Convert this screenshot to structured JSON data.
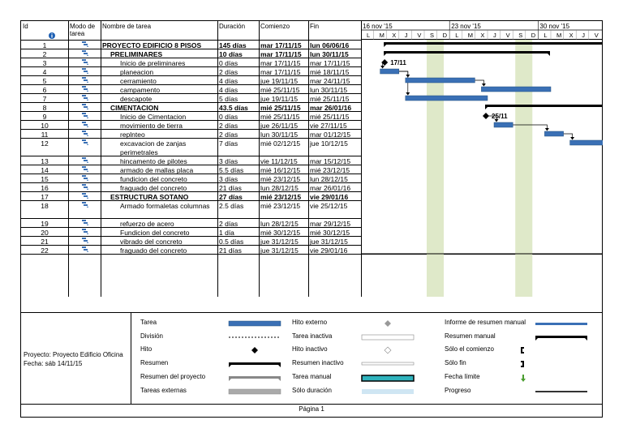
{
  "headers": {
    "id": "Id",
    "mode": "Modo de tarea",
    "name": "Nombre de tarea",
    "duration": "Duración",
    "start": "Comienzo",
    "finish": "Fin"
  },
  "timeline": {
    "weeks": [
      "16 nov '15",
      "23 nov '15",
      "30 nov '15"
    ],
    "days": [
      "L",
      "M",
      "X",
      "J",
      "V",
      "S",
      "D",
      "L",
      "M",
      "X",
      "J",
      "V",
      "S",
      "D",
      "L",
      "M",
      "X",
      "J",
      "V"
    ],
    "milestone_labels": [
      "17/11",
      "25/11"
    ]
  },
  "tasks": [
    {
      "id": "1",
      "name": "PROYECTO EDIFICIO 8 PISOS",
      "duration": "145 días",
      "start": "mar 17/11/15",
      "finish": "lun 06/06/16",
      "bold": true,
      "indent": 0
    },
    {
      "id": "2",
      "name": "PRELIMINARES",
      "duration": "10 días",
      "start": "mar 17/11/15",
      "finish": "lun 30/11/15",
      "bold": true,
      "indent": 1
    },
    {
      "id": "3",
      "name": "Inicio de preliminares",
      "duration": "0 días",
      "start": "mar 17/11/15",
      "finish": "mar 17/11/15",
      "bold": false,
      "indent": 2
    },
    {
      "id": "4",
      "name": "planeacion",
      "duration": "2 días",
      "start": "mar 17/11/15",
      "finish": "mié 18/11/15",
      "bold": false,
      "indent": 2
    },
    {
      "id": "5",
      "name": "cerramiento",
      "duration": "4 días",
      "start": "jue 19/11/15",
      "finish": "mar 24/11/15",
      "bold": false,
      "indent": 2
    },
    {
      "id": "6",
      "name": "campamento",
      "duration": "4 días",
      "start": "mié 25/11/15",
      "finish": "lun 30/11/15",
      "bold": false,
      "indent": 2
    },
    {
      "id": "7",
      "name": "descapote",
      "duration": "5 días",
      "start": "jue 19/11/15",
      "finish": "mié 25/11/15",
      "bold": false,
      "indent": 2
    },
    {
      "id": "8",
      "name": "CIMENTACION",
      "duration": "43.5 días",
      "start": "mié 25/11/15",
      "finish": "mar 26/01/16",
      "bold": true,
      "indent": 1
    },
    {
      "id": "9",
      "name": "Inicio de Cimentacion",
      "duration": "0 días",
      "start": "mié 25/11/15",
      "finish": "mié 25/11/15",
      "bold": false,
      "indent": 2
    },
    {
      "id": "10",
      "name": "movimiento de tierra",
      "duration": "2 días",
      "start": "jue 26/11/15",
      "finish": "vie 27/11/15",
      "bold": false,
      "indent": 2
    },
    {
      "id": "11",
      "name": "replnteo",
      "duration": "2 días",
      "start": "lun 30/11/15",
      "finish": "mar 01/12/15",
      "bold": false,
      "indent": 2
    },
    {
      "id": "12",
      "name": "excavacion de zanjas perimetrales",
      "duration": "7 días",
      "start": "mié 02/12/15",
      "finish": "jue 10/12/15",
      "bold": false,
      "indent": 2
    },
    {
      "id": "13",
      "name": "hincamento de pilotes",
      "duration": "3 días",
      "start": "vie 11/12/15",
      "finish": "mar 15/12/15",
      "bold": false,
      "indent": 2
    },
    {
      "id": "14",
      "name": "armado de mallas placa",
      "duration": "5.5 días",
      "start": "mié 16/12/15",
      "finish": "mié 23/12/15",
      "bold": false,
      "indent": 2
    },
    {
      "id": "15",
      "name": "fundicion del concreto",
      "duration": "3 días",
      "start": "mié 23/12/15",
      "finish": "lun 28/12/15",
      "bold": false,
      "indent": 2
    },
    {
      "id": "16",
      "name": "fraguado del concreto",
      "duration": "21 días",
      "start": "lun 28/12/15",
      "finish": "mar 26/01/16",
      "bold": false,
      "indent": 2
    },
    {
      "id": "17",
      "name": "ESTRUCTURA SOTANO",
      "duration": "27 días",
      "start": "mié 23/12/15",
      "finish": "vie 29/01/16",
      "bold": true,
      "indent": 1
    },
    {
      "id": "18",
      "name": "Armado formaletas columnas",
      "duration": "2.5 días",
      "start": "mié 23/12/15",
      "finish": "vie 25/12/15",
      "bold": false,
      "indent": 2
    },
    {
      "id": "19",
      "name": "refuerzo de acero",
      "duration": "2 días",
      "start": "lun 28/12/15",
      "finish": "mar 29/12/15",
      "bold": false,
      "indent": 2
    },
    {
      "id": "20",
      "name": "Fundicion del concreto",
      "duration": "1 día",
      "start": "mié 30/12/15",
      "finish": "mié 30/12/15",
      "bold": false,
      "indent": 2
    },
    {
      "id": "21",
      "name": "vibrado del concreto",
      "duration": "0.5 días",
      "start": "jue 31/12/15",
      "finish": "jue 31/12/15",
      "bold": false,
      "indent": 2
    },
    {
      "id": "22",
      "name": "fraguado del concreto",
      "duration": "21 días",
      "start": "jue 31/12/15",
      "finish": "vie 29/01/16",
      "bold": false,
      "indent": 2
    }
  ],
  "legend": {
    "col1": [
      "Tarea",
      "División",
      "Hito",
      "Resumen",
      "Resumen del proyecto",
      "Tareas externas"
    ],
    "col2": [
      "Hito externo",
      "Tarea inactiva",
      "Hito inactivo",
      "Resumen inactivo",
      "Tarea manual",
      "Sólo duración"
    ],
    "col3": [
      "Informe de resumen manual",
      "Resumen manual",
      "Sólo el comienzo",
      "Sólo fin",
      "Fecha límite",
      "Progreso"
    ]
  },
  "project": {
    "name": "Proyecto: Proyecto Edificio Oficina",
    "date": "Fecha: sáb 14/11/15"
  },
  "footer": {
    "page": "Página 1"
  },
  "colors": {
    "bar": "#3a70b5",
    "summary": "#000000",
    "weekend": "#dfe9c9",
    "manual": "#2fb3bd"
  }
}
